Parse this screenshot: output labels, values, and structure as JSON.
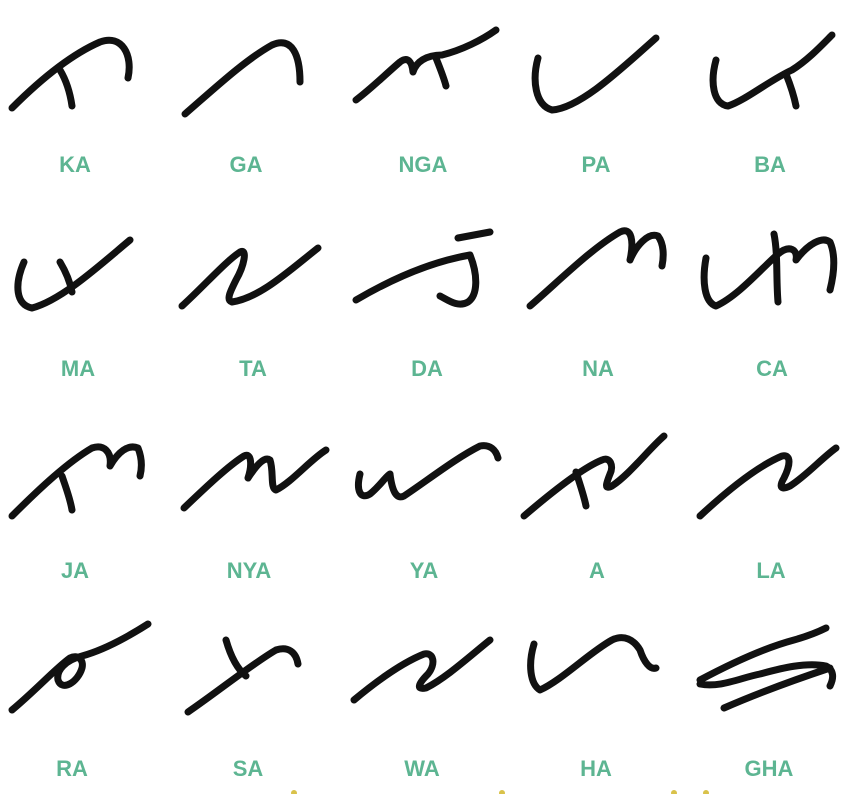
{
  "colors": {
    "stroke": "#111111",
    "label": "#5db592",
    "accent": "#d9c24a"
  },
  "characters": [
    {
      "label": "KA",
      "icon": "ka-glyph"
    },
    {
      "label": "GA",
      "icon": "ga-glyph"
    },
    {
      "label": "NGA",
      "icon": "nga-glyph"
    },
    {
      "label": "PA",
      "icon": "pa-glyph"
    },
    {
      "label": "BA",
      "icon": "ba-glyph"
    },
    {
      "label": "MA",
      "icon": "ma-glyph"
    },
    {
      "label": "TA",
      "icon": "ta-glyph"
    },
    {
      "label": "DA",
      "icon": "da-glyph"
    },
    {
      "label": "NA",
      "icon": "na-glyph"
    },
    {
      "label": "CA",
      "icon": "ca-glyph"
    },
    {
      "label": "JA",
      "icon": "ja-glyph"
    },
    {
      "label": "NYA",
      "icon": "nya-glyph"
    },
    {
      "label": "YA",
      "icon": "ya-glyph"
    },
    {
      "label": "A",
      "icon": "a-glyph"
    },
    {
      "label": "LA",
      "icon": "la-glyph"
    },
    {
      "label": "RA",
      "icon": "ra-glyph"
    },
    {
      "label": "SA",
      "icon": "sa-glyph"
    },
    {
      "label": "WA",
      "icon": "wa-glyph"
    },
    {
      "label": "HA",
      "icon": "ha-glyph"
    },
    {
      "label": "GHA",
      "icon": "gha-glyph"
    }
  ]
}
